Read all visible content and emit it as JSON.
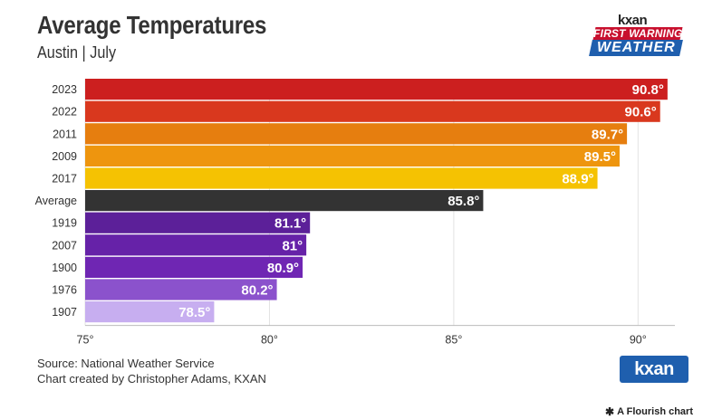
{
  "header": {
    "title": "Average Temperatures",
    "subtitle": "Austin | July"
  },
  "logo_top": {
    "brand": "kxan",
    "line1": "FIRST WARNING",
    "line2": "WEATHER"
  },
  "footer": {
    "source": "Source: National Weather Service",
    "credit": "Chart created by Christopher Adams, KXAN",
    "logo": "kxan",
    "flourish": "A Flourish chart"
  },
  "colors": {
    "bars": [
      "#cc1f1f",
      "#d9381e",
      "#e67e0f",
      "#ee950e",
      "#f5c202",
      "#333333",
      "#5c2099",
      "#6622a8",
      "#6f26b3",
      "#8b52cc",
      "#c7aef0"
    ]
  },
  "chart_data": {
    "type": "bar",
    "orientation": "horizontal",
    "categories": [
      "2023",
      "2022",
      "2011",
      "2009",
      "2017",
      "Average",
      "1919",
      "2007",
      "1900",
      "1976",
      "1907"
    ],
    "values": [
      90.8,
      90.6,
      89.7,
      89.5,
      88.9,
      85.8,
      81.1,
      81,
      80.9,
      80.2,
      78.5
    ],
    "value_labels": [
      "90.8°",
      "90.6°",
      "89.7°",
      "89.5°",
      "88.9°",
      "85.8°",
      "81.1°",
      "81°",
      "80.9°",
      "80.2°",
      "78.5°"
    ],
    "xlim": [
      75,
      91
    ],
    "xticks": [
      75,
      80,
      85,
      90
    ],
    "xtick_labels": [
      "75°",
      "80°",
      "85°",
      "90°"
    ],
    "grid": true
  }
}
